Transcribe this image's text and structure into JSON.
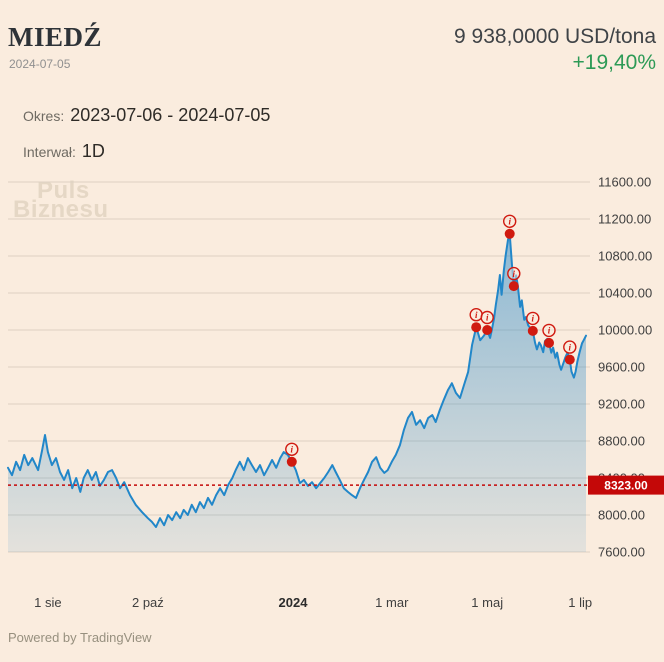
{
  "header": {
    "title": "MIEDŹ",
    "date": "2024-07-05",
    "price": "9 938,0000 USD/tona",
    "change": "+19,40%"
  },
  "meta": {
    "period_label": "Okres:",
    "period_value": "2023-07-06 - 2024-07-05",
    "interval_label": "Interwał:",
    "interval_value": "1D"
  },
  "watermark": {
    "line1": "Puls",
    "line2": "Biznesu"
  },
  "footer": {
    "powered_by": "Powered by TradingView"
  },
  "chart_data": {
    "type": "area",
    "instrument": "MIEDŹ",
    "unit": "USD/tona",
    "interval": "1D",
    "x_range": [
      "2023-07-06",
      "2024-07-05"
    ],
    "ylim": [
      7600,
      11600
    ],
    "grid": "horizontal",
    "legend": "none",
    "y_axis": {
      "side": "right",
      "ticks": [
        {
          "value": 11600,
          "label": "11600.00"
        },
        {
          "value": 11200,
          "label": "11200.00"
        },
        {
          "value": 10800,
          "label": "10800.00"
        },
        {
          "value": 10400,
          "label": "10400.00"
        },
        {
          "value": 10000,
          "label": "10000.00"
        },
        {
          "value": 9600,
          "label": "9600.00"
        },
        {
          "value": 9200,
          "label": "9200.00"
        },
        {
          "value": 8800,
          "label": "8800.00"
        },
        {
          "value": 8400,
          "label": "8400.00"
        },
        {
          "value": 8000,
          "label": "8000.00"
        },
        {
          "value": 7600,
          "label": "7600.00"
        }
      ]
    },
    "x_axis": {
      "ticks": [
        {
          "f": 0.069,
          "label": "1 sie"
        },
        {
          "f": 0.242,
          "label": "2 paź"
        },
        {
          "f": 0.493,
          "label": "2024",
          "bold": true
        },
        {
          "f": 0.664,
          "label": "1 mar"
        },
        {
          "f": 0.829,
          "label": "1 maj"
        },
        {
          "f": 0.99,
          "label": "1 lip"
        }
      ]
    },
    "last_price": {
      "value": 8323,
      "label": "8323.00"
    },
    "series": [
      {
        "name": "MIEDŹ close (USD/tona)",
        "points": [
          [
            0.0,
            8510
          ],
          [
            0.007,
            8430
          ],
          [
            0.014,
            8575
          ],
          [
            0.021,
            8485
          ],
          [
            0.028,
            8650
          ],
          [
            0.035,
            8540
          ],
          [
            0.042,
            8615
          ],
          [
            0.052,
            8485
          ],
          [
            0.059,
            8700
          ],
          [
            0.064,
            8865
          ],
          [
            0.069,
            8680
          ],
          [
            0.076,
            8540
          ],
          [
            0.083,
            8615
          ],
          [
            0.09,
            8465
          ],
          [
            0.097,
            8380
          ],
          [
            0.104,
            8485
          ],
          [
            0.111,
            8290
          ],
          [
            0.118,
            8400
          ],
          [
            0.125,
            8250
          ],
          [
            0.131,
            8400
          ],
          [
            0.138,
            8485
          ],
          [
            0.145,
            8380
          ],
          [
            0.152,
            8465
          ],
          [
            0.159,
            8315
          ],
          [
            0.166,
            8380
          ],
          [
            0.173,
            8465
          ],
          [
            0.18,
            8485
          ],
          [
            0.187,
            8400
          ],
          [
            0.194,
            8290
          ],
          [
            0.201,
            8355
          ],
          [
            0.211,
            8215
          ],
          [
            0.221,
            8110
          ],
          [
            0.232,
            8030
          ],
          [
            0.242,
            7965
          ],
          [
            0.249,
            7925
          ],
          [
            0.256,
            7870
          ],
          [
            0.263,
            7965
          ],
          [
            0.27,
            7890
          ],
          [
            0.277,
            8000
          ],
          [
            0.284,
            7945
          ],
          [
            0.291,
            8030
          ],
          [
            0.298,
            7965
          ],
          [
            0.304,
            8055
          ],
          [
            0.311,
            8000
          ],
          [
            0.318,
            8110
          ],
          [
            0.325,
            8030
          ],
          [
            0.332,
            8140
          ],
          [
            0.339,
            8075
          ],
          [
            0.346,
            8185
          ],
          [
            0.353,
            8110
          ],
          [
            0.36,
            8215
          ],
          [
            0.367,
            8290
          ],
          [
            0.374,
            8215
          ],
          [
            0.381,
            8325
          ],
          [
            0.388,
            8400
          ],
          [
            0.394,
            8485
          ],
          [
            0.401,
            8575
          ],
          [
            0.408,
            8485
          ],
          [
            0.415,
            8615
          ],
          [
            0.422,
            8540
          ],
          [
            0.429,
            8465
          ],
          [
            0.436,
            8540
          ],
          [
            0.443,
            8430
          ],
          [
            0.45,
            8510
          ],
          [
            0.457,
            8595
          ],
          [
            0.464,
            8510
          ],
          [
            0.471,
            8615
          ],
          [
            0.477,
            8680
          ],
          [
            0.484,
            8650
          ],
          [
            0.491,
            8575
          ],
          [
            0.498,
            8485
          ],
          [
            0.505,
            8345
          ],
          [
            0.512,
            8380
          ],
          [
            0.519,
            8315
          ],
          [
            0.526,
            8355
          ],
          [
            0.533,
            8290
          ],
          [
            0.54,
            8345
          ],
          [
            0.547,
            8400
          ],
          [
            0.554,
            8465
          ],
          [
            0.561,
            8540
          ],
          [
            0.567,
            8465
          ],
          [
            0.574,
            8380
          ],
          [
            0.581,
            8290
          ],
          [
            0.588,
            8250
          ],
          [
            0.595,
            8215
          ],
          [
            0.602,
            8185
          ],
          [
            0.609,
            8290
          ],
          [
            0.616,
            8380
          ],
          [
            0.623,
            8465
          ],
          [
            0.63,
            8575
          ],
          [
            0.637,
            8625
          ],
          [
            0.644,
            8510
          ],
          [
            0.651,
            8455
          ],
          [
            0.657,
            8485
          ],
          [
            0.664,
            8575
          ],
          [
            0.671,
            8650
          ],
          [
            0.678,
            8755
          ],
          [
            0.685,
            8920
          ],
          [
            0.692,
            9050
          ],
          [
            0.699,
            9115
          ],
          [
            0.706,
            8975
          ],
          [
            0.713,
            9025
          ],
          [
            0.72,
            8940
          ],
          [
            0.727,
            9050
          ],
          [
            0.734,
            9080
          ],
          [
            0.74,
            9005
          ],
          [
            0.747,
            9135
          ],
          [
            0.754,
            9245
          ],
          [
            0.761,
            9350
          ],
          [
            0.768,
            9425
          ],
          [
            0.775,
            9320
          ],
          [
            0.782,
            9265
          ],
          [
            0.789,
            9405
          ],
          [
            0.796,
            9545
          ],
          [
            0.803,
            9840
          ],
          [
            0.81,
            10030
          ],
          [
            0.817,
            9890
          ],
          [
            0.824,
            9945
          ],
          [
            0.829,
            10000
          ],
          [
            0.834,
            9915
          ],
          [
            0.837,
            10000
          ],
          [
            0.841,
            10130
          ],
          [
            0.844,
            10270
          ],
          [
            0.848,
            10430
          ],
          [
            0.851,
            10595
          ],
          [
            0.854,
            10380
          ],
          [
            0.858,
            10650
          ],
          [
            0.861,
            10810
          ],
          [
            0.865,
            10975
          ],
          [
            0.868,
            11040
          ],
          [
            0.872,
            10700
          ],
          [
            0.875,
            10475
          ],
          [
            0.879,
            10590
          ],
          [
            0.882,
            10480
          ],
          [
            0.886,
            10250
          ],
          [
            0.889,
            10320
          ],
          [
            0.893,
            10110
          ],
          [
            0.896,
            10140
          ],
          [
            0.9,
            10050
          ],
          [
            0.904,
            10020
          ],
          [
            0.908,
            9990
          ],
          [
            0.912,
            9860
          ],
          [
            0.915,
            9790
          ],
          [
            0.919,
            9865
          ],
          [
            0.922,
            9835
          ],
          [
            0.926,
            9760
          ],
          [
            0.929,
            9880
          ],
          [
            0.933,
            9905
          ],
          [
            0.936,
            9860
          ],
          [
            0.94,
            9755
          ],
          [
            0.943,
            9810
          ],
          [
            0.947,
            9700
          ],
          [
            0.95,
            9755
          ],
          [
            0.954,
            9625
          ],
          [
            0.957,
            9570
          ],
          [
            0.961,
            9645
          ],
          [
            0.964,
            9700
          ],
          [
            0.968,
            9755
          ],
          [
            0.972,
            9680
          ],
          [
            0.975,
            9550
          ],
          [
            0.979,
            9485
          ],
          [
            0.982,
            9550
          ],
          [
            0.985,
            9655
          ],
          [
            0.989,
            9760
          ],
          [
            0.993,
            9855
          ],
          [
            0.996,
            9890
          ],
          [
            1.0,
            9938
          ]
        ]
      }
    ],
    "markers": {
      "glyph": "i",
      "color": "#d01a10",
      "points": [
        [
          0.491,
          8575
        ],
        [
          0.81,
          10030
        ],
        [
          0.829,
          10000
        ],
        [
          0.868,
          11040
        ],
        [
          0.875,
          10475
        ],
        [
          0.908,
          9990
        ],
        [
          0.936,
          9860
        ],
        [
          0.972,
          9680
        ]
      ]
    },
    "colors": {
      "background": "#faecde",
      "grid": "#ddd1c2",
      "axis_text": "#3f3f3f",
      "line": "#2287c9",
      "fill_top": "rgba(34,134,201,0.50)",
      "fill_bottom": "rgba(34,134,201,0.10)",
      "last_price": "#c40808",
      "change_positive": "#2d9a56"
    }
  }
}
